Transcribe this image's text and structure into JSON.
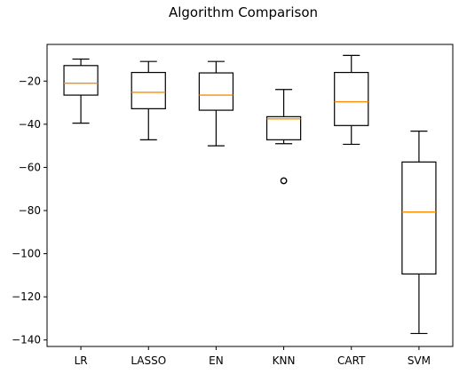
{
  "chart_data": {
    "type": "box",
    "title": "Algorithm Comparison",
    "xlabel": "",
    "ylabel": "",
    "ylim": [
      -143,
      -3
    ],
    "yticks": [
      -20,
      -40,
      -60,
      -80,
      -100,
      -120,
      -140
    ],
    "grid": false,
    "categories": [
      "LR",
      "LASSO",
      "EN",
      "KNN",
      "CART",
      "SVM"
    ],
    "boxes": [
      {
        "name": "LR",
        "whisker_low": -39.5,
        "q1": -26.5,
        "median": -21.0,
        "q3": -12.8,
        "whisker_high": -9.8,
        "fliers": []
      },
      {
        "name": "LASSO",
        "whisker_low": -47.2,
        "q1": -32.8,
        "median": -25.2,
        "q3": -16.0,
        "whisker_high": -10.9,
        "fliers": []
      },
      {
        "name": "EN",
        "whisker_low": -50.0,
        "q1": -33.5,
        "median": -26.5,
        "q3": -16.2,
        "whisker_high": -10.9,
        "fliers": []
      },
      {
        "name": "KNN",
        "whisker_low": -49.0,
        "q1": -47.2,
        "median": -37.5,
        "q3": -36.5,
        "whisker_high": -23.9,
        "fliers": [
          -66.2
        ]
      },
      {
        "name": "CART",
        "whisker_low": -49.3,
        "q1": -40.6,
        "median": -29.6,
        "q3": -16.0,
        "whisker_high": -8.1,
        "fliers": []
      },
      {
        "name": "SVM",
        "whisker_low": -137.0,
        "q1": -109.4,
        "median": -80.7,
        "q3": -57.5,
        "whisker_high": -43.2,
        "fliers": []
      }
    ]
  },
  "colors": {
    "median": "#ff8c00",
    "box": "#000000"
  }
}
